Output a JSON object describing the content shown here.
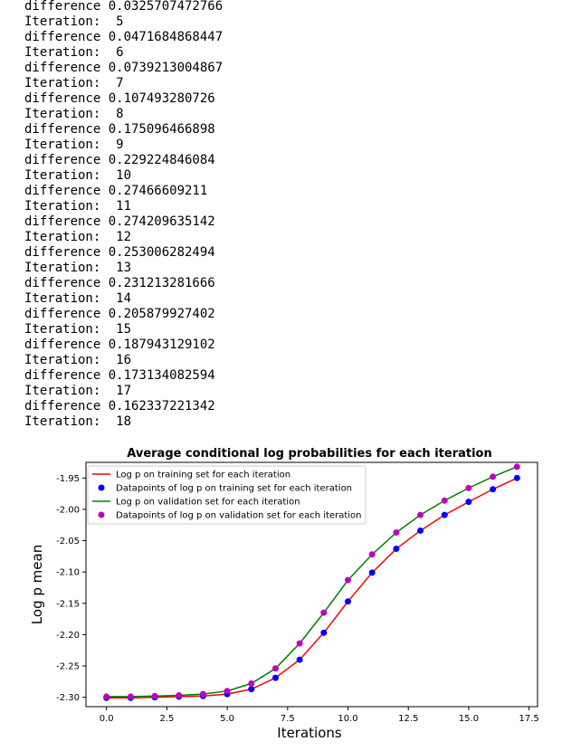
{
  "console": {
    "lines": [
      "difference 0.0325707472766",
      "Iteration:  5",
      "difference 0.0471684868447",
      "Iteration:  6",
      "difference 0.0739213004867",
      "Iteration:  7",
      "difference 0.107493280726",
      "Iteration:  8",
      "difference 0.175096466898",
      "Iteration:  9",
      "difference 0.229224846084",
      "Iteration:  10",
      "difference 0.27466609211",
      "Iteration:  11",
      "difference 0.274209635142",
      "Iteration:  12",
      "difference 0.253006282494",
      "Iteration:  13",
      "difference 0.231213281666",
      "Iteration:  14",
      "difference 0.205879927402",
      "Iteration:  15",
      "difference 0.187943129102",
      "Iteration:  16",
      "difference 0.173134082594",
      "Iteration:  17",
      "difference 0.162337221342",
      "Iteration:  18"
    ]
  },
  "chart_data": {
    "type": "line",
    "title": "Average conditional log probabilities for each iteration",
    "xlabel": "Iterations",
    "ylabel": "Log p mean",
    "xlim": [
      -0.85,
      17.85
    ],
    "ylim": [
      -2.315,
      -1.925
    ],
    "xticks": [
      "0.0",
      "2.5",
      "5.0",
      "7.5",
      "10.0",
      "12.5",
      "15.0",
      "17.5"
    ],
    "xtick_values": [
      0,
      2.5,
      5,
      7.5,
      10,
      12.5,
      15,
      17.5
    ],
    "yticks": [
      "-1.95",
      "-2.00",
      "-2.05",
      "-2.10",
      "-2.15",
      "-2.20",
      "-2.25",
      "-2.30"
    ],
    "ytick_values": [
      -1.95,
      -2.0,
      -2.05,
      -2.1,
      -2.15,
      -2.2,
      -2.25,
      -2.3
    ],
    "grid": false,
    "legend_position": "top-left",
    "x": [
      0,
      1,
      2,
      3,
      4,
      5,
      6,
      7,
      8,
      9,
      10,
      11,
      12,
      13,
      14,
      15,
      16,
      17
    ],
    "series": [
      {
        "name": "Log p on training set for each iteration",
        "style": "line",
        "color": "#ff0000",
        "values": [
          -2.301,
          -2.301,
          -2.3,
          -2.299,
          -2.298,
          -2.295,
          -2.287,
          -2.269,
          -2.24,
          -2.197,
          -2.147,
          -2.101,
          -2.063,
          -2.034,
          -2.009,
          -1.988,
          -1.968,
          -1.95
        ]
      },
      {
        "name": "Datapoints of log p on training set for each iteration",
        "style": "markers",
        "color": "#0000ff",
        "values": [
          -2.301,
          -2.301,
          -2.3,
          -2.299,
          -2.298,
          -2.295,
          -2.287,
          -2.269,
          -2.24,
          -2.197,
          -2.147,
          -2.101,
          -2.063,
          -2.034,
          -2.009,
          -1.988,
          -1.968,
          -1.95
        ]
      },
      {
        "name": "Log p on validation set for each iteration",
        "style": "line",
        "color": "#008000",
        "values": [
          -2.299,
          -2.299,
          -2.298,
          -2.297,
          -2.295,
          -2.29,
          -2.278,
          -2.254,
          -2.214,
          -2.165,
          -2.113,
          -2.072,
          -2.037,
          -2.009,
          -1.986,
          -1.966,
          -1.948,
          -1.932
        ]
      },
      {
        "name": "Datapoints of log p on validation set for each iteration",
        "style": "markers",
        "color": "#bf00bf",
        "values": [
          -2.299,
          -2.299,
          -2.298,
          -2.297,
          -2.295,
          -2.29,
          -2.278,
          -2.254,
          -2.214,
          -2.165,
          -2.113,
          -2.072,
          -2.037,
          -2.009,
          -1.986,
          -1.966,
          -1.948,
          -1.932
        ]
      }
    ]
  }
}
